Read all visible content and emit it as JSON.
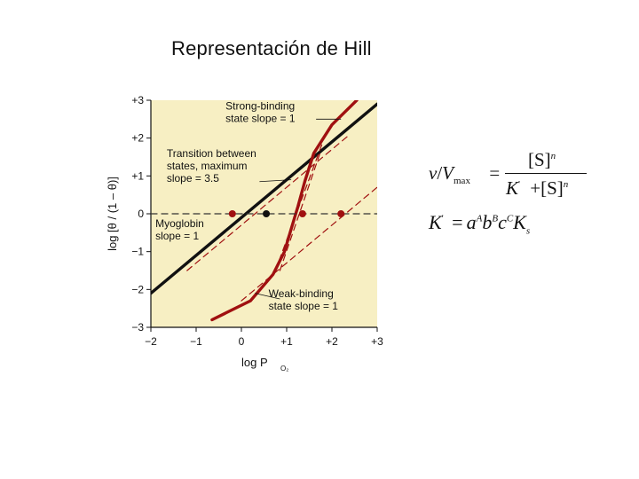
{
  "slide": {
    "title": "Representación de Hill"
  },
  "equations": {
    "lhs_v": "v",
    "lhs_slash": "/",
    "lhs_V": "V",
    "lhs_max": "max",
    "equals": "=",
    "num_S": "[S]",
    "num_n": "n",
    "den_K": "K",
    "den_prime": "'",
    "den_plus": "+",
    "den_S": "[S]",
    "den_n": "n",
    "k_K": "K",
    "k_prime": "'",
    "k_eq": "=",
    "k_a": "a",
    "k_A": "A",
    "k_b": "b",
    "k_B": "B",
    "k_c": "c",
    "k_C": "C",
    "k_Ks": "K",
    "k_s": "s"
  },
  "chart_data": {
    "type": "line",
    "xlabel": "log P",
    "xlabel_sub": "O₂",
    "ylabel": "log [θ / (1 – θ)]",
    "xlim": [
      -2,
      3
    ],
    "ylim": [
      -3,
      3
    ],
    "x_ticks": [
      -2,
      -1,
      0,
      1,
      2,
      3
    ],
    "x_tick_labels": [
      "−2",
      "−1",
      "0",
      "+1",
      "+2",
      "+3"
    ],
    "y_ticks": [
      3,
      2,
      1,
      0,
      -1,
      -2,
      -3
    ],
    "y_tick_labels": [
      "+3",
      "+2",
      "+1",
      "0",
      "−1",
      "−2",
      "−3"
    ],
    "background_color": "#f7efc3",
    "series": [
      {
        "color": "#111111",
        "style": "solid",
        "points": [
          [
            -2,
            -2.1
          ],
          [
            3,
            2.9
          ]
        ]
      },
      {
        "color": "#a01010",
        "style": "solid",
        "points": [
          [
            -0.65,
            -2.8
          ],
          [
            0.2,
            -2.3
          ],
          [
            0.7,
            -1.6
          ],
          [
            0.95,
            -1.0
          ],
          [
            1.1,
            -0.4
          ],
          [
            1.25,
            0.2
          ],
          [
            1.4,
            0.85
          ],
          [
            1.6,
            1.6
          ],
          [
            2.0,
            2.35
          ],
          [
            2.55,
            3.0
          ]
        ]
      },
      {
        "color": "#a01010",
        "style": "dashed",
        "points": [
          [
            0,
            -2.3
          ],
          [
            3,
            0.7
          ]
        ]
      },
      {
        "color": "#a01010",
        "style": "dashed",
        "points": [
          [
            -1.2,
            -1.5
          ],
          [
            2.4,
            2.1
          ]
        ]
      },
      {
        "color": "#a01010",
        "style": "dashed",
        "points": [
          [
            0.85,
            -1.5
          ],
          [
            1.75,
            1.65
          ]
        ]
      },
      {
        "color": "#a01010",
        "style": "dashed",
        "points": [
          [
            0.75,
            -1.5
          ],
          [
            1.8,
            1.9
          ]
        ]
      },
      {
        "color": "#333333",
        "style": "dashed",
        "points": [
          [
            -2,
            0
          ],
          [
            3,
            0
          ]
        ]
      }
    ],
    "markers": [
      {
        "x": -0.2,
        "y": 0,
        "color": "#a01010"
      },
      {
        "x": 0.55,
        "y": 0,
        "color": "#111111"
      },
      {
        "x": 1.35,
        "y": 0,
        "color": "#a01010"
      },
      {
        "x": 2.2,
        "y": 0,
        "color": "#a01010"
      }
    ],
    "annotations": [
      {
        "lines": [
          "Strong-binding",
          "state slope = 1"
        ],
        "x": -0.35,
        "y": 2.75,
        "pointer": [
          [
            1.65,
            2.5
          ],
          [
            2.2,
            2.5
          ]
        ]
      },
      {
        "lines": [
          "Transition between",
          "states, maximum",
          "slope = 3.5"
        ],
        "x": -1.65,
        "y": 1.5,
        "pointer": [
          [
            0.4,
            0.85
          ],
          [
            1.1,
            0.9
          ]
        ]
      },
      {
        "lines": [
          "Myoglobin",
          "slope = 1"
        ],
        "x": -1.9,
        "y": -0.35,
        "pointer": null
      },
      {
        "lines": [
          "Weak-binding",
          "state slope = 1"
        ],
        "x": 0.6,
        "y": -2.2,
        "pointer": [
          [
            0.3,
            -2.1
          ],
          [
            0.85,
            -2.25
          ]
        ]
      }
    ]
  }
}
